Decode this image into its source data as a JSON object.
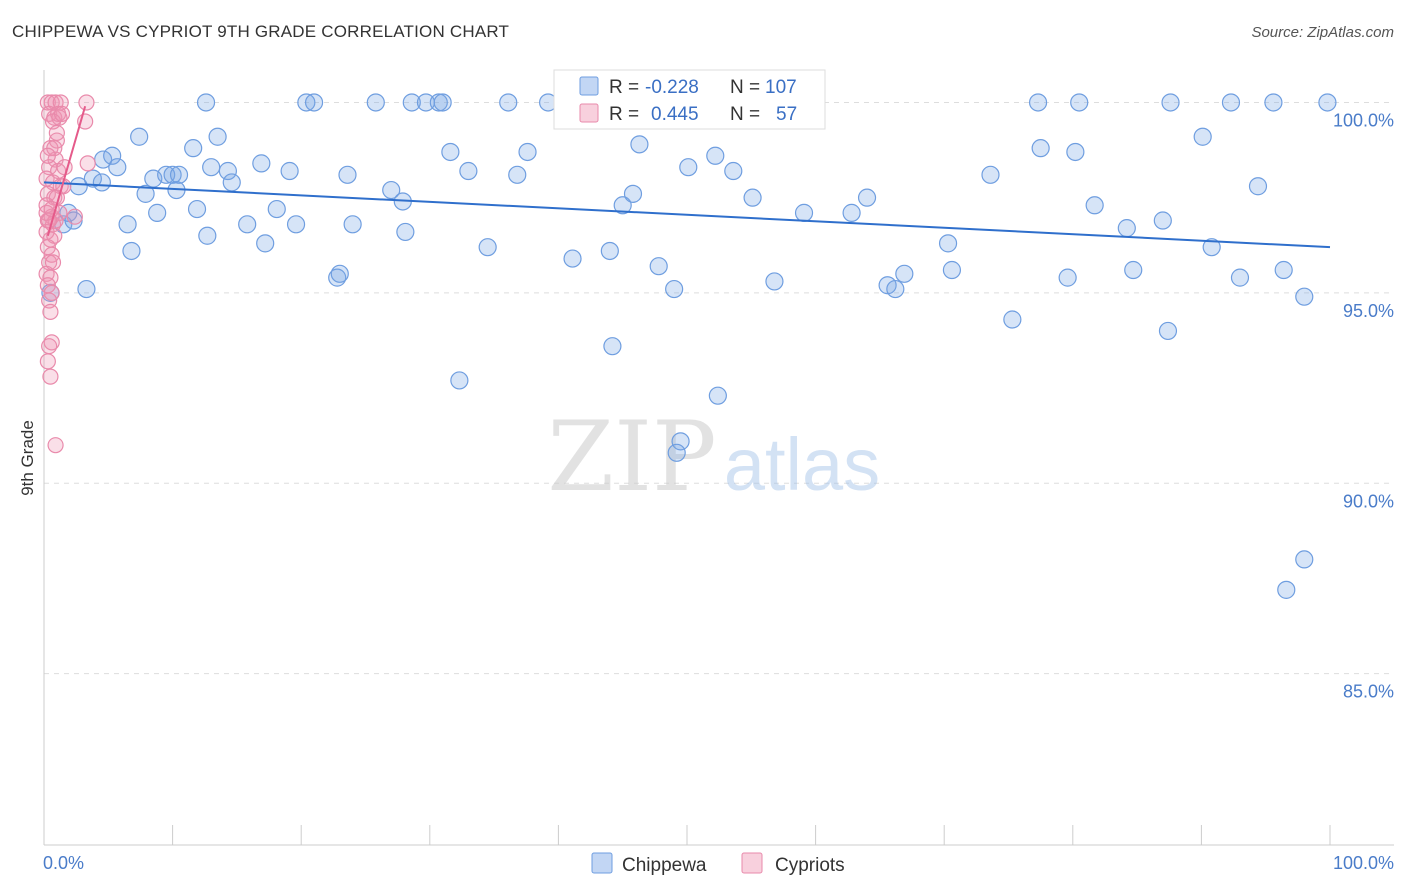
{
  "title": "CHIPPEWA VS CYPRIOT 9TH GRADE CORRELATION CHART",
  "source": "Source: ZipAtlas.com",
  "watermark": {
    "zip": "ZIP",
    "atlas": "atlas"
  },
  "colors": {
    "blue_fill": "rgba(120,165,230,0.30)",
    "blue_stroke": "#6f9ee0",
    "blue_line": "#2f6fcc",
    "pink_fill": "rgba(240,150,180,0.30)",
    "pink_stroke": "#e98aab",
    "pink_line": "#e55a8a",
    "grid": "#dddddd",
    "axis_label": "#4a7cc9"
  },
  "legend": {
    "r_label": "R =",
    "n_label": "N =",
    "rows": [
      {
        "r": "-0.228",
        "n": "107"
      },
      {
        "r": "0.445",
        "n": "57"
      }
    ]
  },
  "chart_data": {
    "type": "scatter",
    "title": "CHIPPEWA VS CYPRIOT 9TH GRADE CORRELATION CHART",
    "xlabel": "",
    "ylabel": "9th Grade",
    "xlim": [
      0,
      100
    ],
    "ylim": [
      80.5,
      100.8
    ],
    "x_tick_labels": [
      "0.0%",
      "100.0%"
    ],
    "y_ticks": [
      85,
      90,
      95,
      100
    ],
    "y_tick_labels": [
      "85.0%",
      "90.0%",
      "95.0%",
      "100.0%"
    ],
    "grid": true,
    "legend_position": "top-center",
    "series": [
      {
        "name": "Chippewa",
        "r": -0.228,
        "n": 107,
        "trend": {
          "x": [
            0,
            100
          ],
          "y": [
            97.9,
            96.2
          ]
        },
        "points": [
          [
            0.5,
            95.0
          ],
          [
            1.5,
            96.8
          ],
          [
            1.9,
            97.1
          ],
          [
            2.3,
            96.9
          ],
          [
            2.7,
            97.8
          ],
          [
            3.3,
            95.1
          ],
          [
            3.8,
            98.0
          ],
          [
            4.5,
            97.9
          ],
          [
            4.6,
            98.5
          ],
          [
            5.3,
            98.6
          ],
          [
            5.7,
            98.3
          ],
          [
            6.5,
            96.8
          ],
          [
            6.8,
            96.1
          ],
          [
            7.4,
            99.1
          ],
          [
            7.9,
            97.6
          ],
          [
            8.5,
            98.0
          ],
          [
            8.8,
            97.1
          ],
          [
            9.5,
            98.1
          ],
          [
            10.0,
            98.1
          ],
          [
            10.3,
            97.7
          ],
          [
            10.5,
            98.1
          ],
          [
            11.6,
            98.8
          ],
          [
            11.9,
            97.2
          ],
          [
            12.7,
            96.5
          ],
          [
            13.0,
            98.3
          ],
          [
            13.5,
            99.1
          ],
          [
            14.3,
            98.2
          ],
          [
            14.6,
            97.9
          ],
          [
            15.8,
            96.8
          ],
          [
            16.9,
            98.4
          ],
          [
            17.2,
            96.3
          ],
          [
            18.1,
            97.2
          ],
          [
            19.1,
            98.2
          ],
          [
            19.6,
            96.8
          ],
          [
            12.6,
            100.0
          ],
          [
            20.4,
            100.0
          ],
          [
            21.0,
            100.0
          ],
          [
            22.8,
            95.4
          ],
          [
            23.0,
            95.5
          ],
          [
            23.6,
            98.1
          ],
          [
            24.0,
            96.8
          ],
          [
            25.8,
            100.0
          ],
          [
            27.0,
            97.7
          ],
          [
            27.9,
            97.4
          ],
          [
            28.1,
            96.6
          ],
          [
            28.6,
            100.0
          ],
          [
            29.7,
            100.0
          ],
          [
            30.7,
            100.0
          ],
          [
            31.0,
            100.0
          ],
          [
            31.6,
            98.7
          ],
          [
            32.3,
            92.7
          ],
          [
            33.0,
            98.2
          ],
          [
            34.5,
            96.2
          ],
          [
            36.1,
            100.0
          ],
          [
            37.6,
            98.7
          ],
          [
            39.2,
            100.0
          ],
          [
            41.1,
            95.9
          ],
          [
            42.1,
            100.0
          ],
          [
            44.0,
            96.1
          ],
          [
            44.2,
            93.6
          ],
          [
            45.0,
            97.3
          ],
          [
            46.3,
            98.9
          ],
          [
            47.8,
            95.7
          ],
          [
            49.0,
            95.1
          ],
          [
            49.5,
            91.1
          ],
          [
            50.1,
            98.3
          ],
          [
            49.2,
            90.8
          ],
          [
            52.2,
            98.6
          ],
          [
            52.4,
            92.3
          ],
          [
            53.6,
            98.2
          ],
          [
            54.0,
            99.7
          ],
          [
            55.1,
            97.5
          ],
          [
            56.8,
            95.3
          ],
          [
            59.1,
            97.1
          ],
          [
            62.8,
            97.1
          ],
          [
            64.0,
            97.5
          ],
          [
            65.6,
            95.2
          ],
          [
            66.2,
            95.1
          ],
          [
            66.9,
            95.5
          ],
          [
            70.3,
            96.3
          ],
          [
            70.6,
            95.6
          ],
          [
            73.6,
            98.1
          ],
          [
            75.3,
            94.3
          ],
          [
            77.3,
            100.0
          ],
          [
            77.5,
            98.8
          ],
          [
            79.6,
            95.4
          ],
          [
            80.2,
            98.7
          ],
          [
            80.5,
            100.0
          ],
          [
            81.7,
            97.3
          ],
          [
            84.2,
            96.7
          ],
          [
            84.7,
            95.6
          ],
          [
            87.0,
            96.9
          ],
          [
            87.4,
            94.0
          ],
          [
            87.6,
            100.0
          ],
          [
            90.1,
            99.1
          ],
          [
            90.8,
            96.2
          ],
          [
            92.3,
            100.0
          ],
          [
            93.0,
            95.4
          ],
          [
            94.4,
            97.8
          ],
          [
            95.6,
            100.0
          ],
          [
            96.4,
            95.6
          ],
          [
            96.6,
            87.2
          ],
          [
            98.0,
            88.0
          ],
          [
            98.0,
            94.9
          ],
          [
            99.8,
            100.0
          ],
          [
            45.8,
            97.6
          ],
          [
            36.8,
            98.1
          ]
        ]
      },
      {
        "name": "Cypriots",
        "r": 0.445,
        "n": 57,
        "trend": {
          "x": [
            0.3,
            3.2
          ],
          "y": [
            96.5,
            99.9
          ]
        },
        "points": [
          [
            0.3,
            100.0
          ],
          [
            0.6,
            100.0
          ],
          [
            0.9,
            100.0
          ],
          [
            1.3,
            100.0
          ],
          [
            3.3,
            100.0
          ],
          [
            0.4,
            99.7
          ],
          [
            0.8,
            99.6
          ],
          [
            1.2,
            99.6
          ],
          [
            1.1,
            99.7
          ],
          [
            0.7,
            99.5
          ],
          [
            3.2,
            99.5
          ],
          [
            1.0,
            99.0
          ],
          [
            0.5,
            98.8
          ],
          [
            0.9,
            98.5
          ],
          [
            3.4,
            98.4
          ],
          [
            0.4,
            98.3
          ],
          [
            1.1,
            98.2
          ],
          [
            1.6,
            98.3
          ],
          [
            0.2,
            98.0
          ],
          [
            0.7,
            97.9
          ],
          [
            1.3,
            97.8
          ],
          [
            0.3,
            97.6
          ],
          [
            0.8,
            97.5
          ],
          [
            1.0,
            97.5
          ],
          [
            0.2,
            97.3
          ],
          [
            0.6,
            97.0
          ],
          [
            1.2,
            97.1
          ],
          [
            0.3,
            96.9
          ],
          [
            0.7,
            96.8
          ],
          [
            0.9,
            96.9
          ],
          [
            0.2,
            96.6
          ],
          [
            0.5,
            96.4
          ],
          [
            0.8,
            96.5
          ],
          [
            0.3,
            96.2
          ],
          [
            0.6,
            96.0
          ],
          [
            0.4,
            95.8
          ],
          [
            0.7,
            95.8
          ],
          [
            0.2,
            95.5
          ],
          [
            0.5,
            95.4
          ],
          [
            0.3,
            95.2
          ],
          [
            0.6,
            95.0
          ],
          [
            0.4,
            94.8
          ],
          [
            0.5,
            94.5
          ],
          [
            0.6,
            93.7
          ],
          [
            0.4,
            93.6
          ],
          [
            0.3,
            93.2
          ],
          [
            0.5,
            92.8
          ],
          [
            0.9,
            91.0
          ],
          [
            0.2,
            97.1
          ],
          [
            0.4,
            96.9
          ],
          [
            1.5,
            97.8
          ],
          [
            0.8,
            98.8
          ],
          [
            1.0,
            99.2
          ],
          [
            2.4,
            97.0
          ],
          [
            0.3,
            98.6
          ],
          [
            1.4,
            99.7
          ],
          [
            0.6,
            97.2
          ]
        ]
      }
    ]
  }
}
